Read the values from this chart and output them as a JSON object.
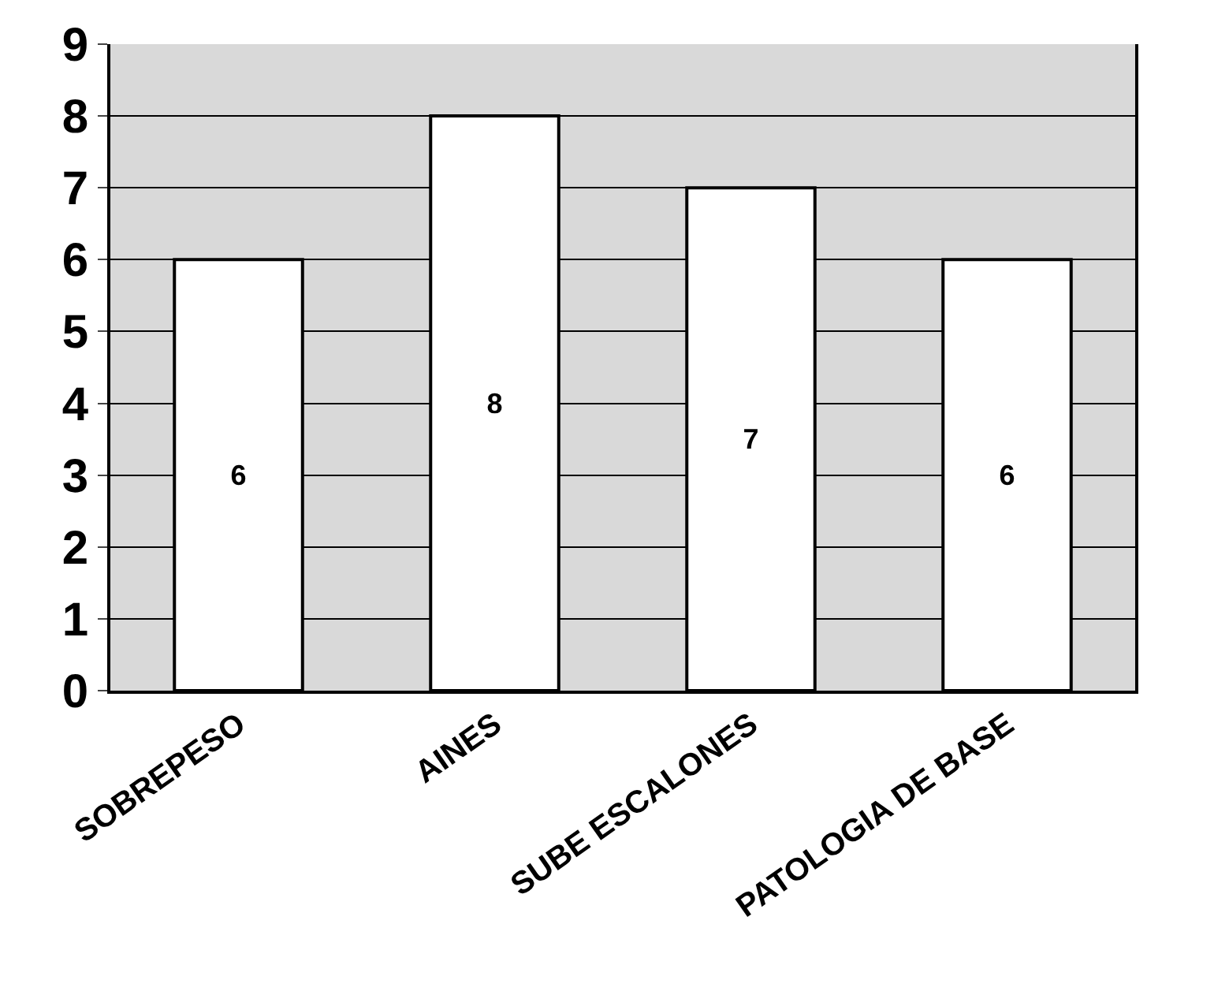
{
  "chart_data": {
    "type": "bar",
    "categories": [
      "SOBREPESO",
      "AINES",
      "SUBE ESCALONES",
      "PATOLOGIA DE BASE"
    ],
    "values": [
      6,
      8,
      7,
      6
    ],
    "color": "#ffffff",
    "ylim": [
      0,
      9
    ],
    "yticks": [
      0,
      1,
      2,
      3,
      4,
      5,
      6,
      7,
      8,
      9
    ],
    "grid": "y",
    "data_labels": true
  }
}
